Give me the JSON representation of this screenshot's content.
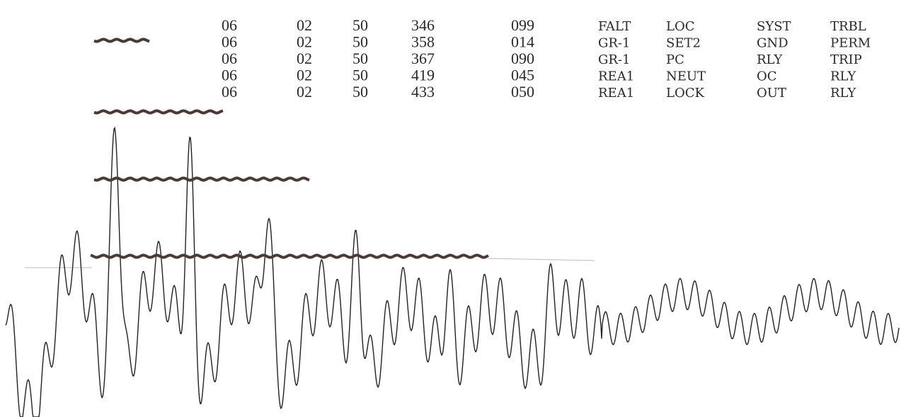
{
  "table": {
    "rows": [
      [
        "06",
        "02",
        "50",
        "346",
        "099",
        "FALT",
        "LOC",
        "SYST",
        "TRBL"
      ],
      [
        "06",
        "02",
        "50",
        "358",
        "014",
        "GR-1",
        "SET2",
        "GND",
        "PERM"
      ],
      [
        "06",
        "02",
        "50",
        "367",
        "090",
        "GR-1",
        "PC",
        "RLY",
        "TRIP"
      ],
      [
        "06",
        "02",
        "50",
        "419",
        "045",
        "REA1",
        "NEUT",
        "OC",
        "RLY"
      ],
      [
        "06",
        "02",
        "50",
        "433",
        "050",
        "REA1",
        "LOCK",
        "OUT",
        "RLY"
      ]
    ]
  }
}
